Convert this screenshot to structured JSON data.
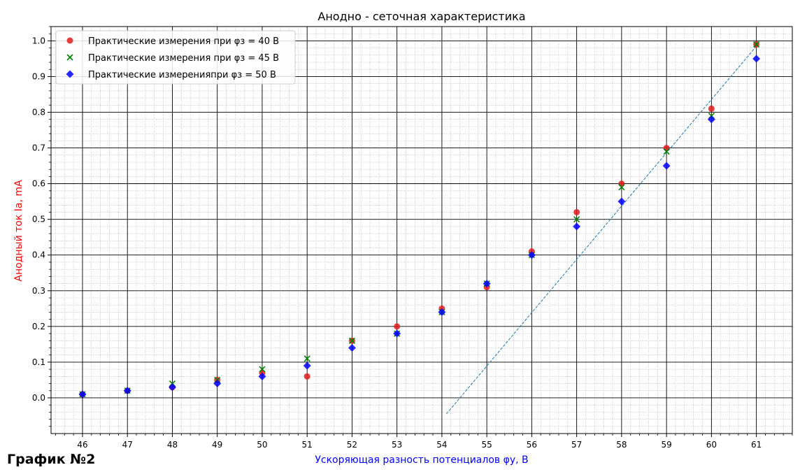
{
  "caption": "График №2",
  "chart_data": {
    "type": "scatter",
    "title": "Анодно - сеточная характеристика",
    "xlabel": "Ускоряющая разность потенциалов φу, В",
    "ylabel": "Анодный ток Ia, mA",
    "xlim": [
      45.3,
      61.8
    ],
    "ylim": [
      -0.1,
      1.04
    ],
    "x_ticks": [
      46,
      47,
      48,
      49,
      50,
      51,
      52,
      53,
      54,
      55,
      56,
      57,
      58,
      59,
      60,
      61
    ],
    "y_ticks": [
      0.0,
      0.1,
      0.2,
      0.3,
      0.4,
      0.5,
      0.6,
      0.7,
      0.8,
      0.9,
      1.0
    ],
    "grid": "major and minor",
    "legend_position": "top-left",
    "colors": {
      "xlabel": "#0000ff",
      "ylabel": "#ff0000",
      "major_grid": "#000000",
      "minor_grid": "#aaaaaa"
    },
    "series": [
      {
        "name": "Практические измерения при φз = 40 В",
        "marker": "circle",
        "color": "#e41a1c",
        "x": [
          46,
          47,
          48,
          49,
          50,
          51,
          52,
          53,
          54,
          55,
          56,
          57,
          58,
          59,
          60,
          61
        ],
        "y": [
          0.01,
          0.02,
          0.03,
          0.05,
          0.07,
          0.06,
          0.16,
          0.2,
          0.25,
          0.31,
          0.41,
          0.52,
          0.6,
          0.7,
          0.81,
          0.99
        ]
      },
      {
        "name": "Практические измерения при φз = 45 В",
        "marker": "x",
        "color": "#008000",
        "x": [
          46,
          47,
          48,
          49,
          50,
          51,
          52,
          53,
          54,
          55,
          56,
          57,
          58,
          59,
          60,
          61
        ],
        "y": [
          0.01,
          0.02,
          0.04,
          0.05,
          0.08,
          0.11,
          0.16,
          0.18,
          0.24,
          0.32,
          0.4,
          0.5,
          0.59,
          0.69,
          0.79,
          0.99
        ]
      },
      {
        "name": "Практические измеренияпри φз = 50 В",
        "marker": "diamond",
        "color": "#0000ff",
        "x": [
          46,
          47,
          48,
          49,
          50,
          51,
          52,
          53,
          54,
          55,
          56,
          57,
          58,
          59,
          60,
          61
        ],
        "y": [
          0.01,
          0.02,
          0.03,
          0.04,
          0.06,
          0.09,
          0.14,
          0.18,
          0.24,
          0.32,
          0.4,
          0.48,
          0.55,
          0.65,
          0.78,
          0.95
        ]
      }
    ],
    "fit_line": {
      "style": "dashed",
      "color": "#1f77b4",
      "x": [
        54.1,
        61.0
      ],
      "y": [
        -0.045,
        0.985
      ]
    }
  }
}
